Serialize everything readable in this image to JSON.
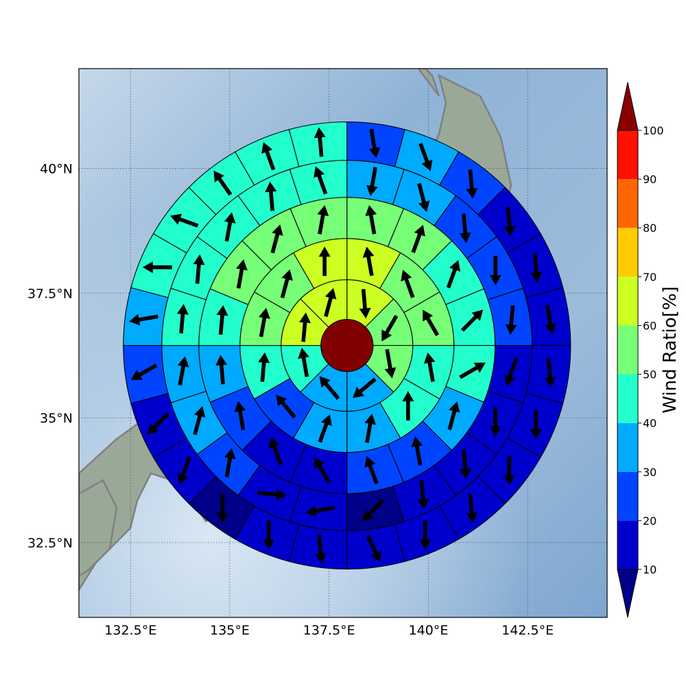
{
  "chart_data": {
    "type": "heatmap",
    "title": "",
    "map": {
      "lon_range": [
        131.2,
        144.5
      ],
      "lat_range": [
        31.0,
        42.0
      ],
      "x_ticks": [
        "132.5°E",
        "135°E",
        "137.5°E",
        "140°E",
        "142.5°E"
      ],
      "x_tick_values": [
        132.5,
        135,
        137.5,
        140,
        142.5
      ],
      "y_ticks": [
        "32.5°N",
        "35°N",
        "37.5°N",
        "40°N"
      ],
      "y_tick_values": [
        32.5,
        35,
        37.5,
        40
      ],
      "grid": true,
      "background": "shaded relief map with gray coastlines",
      "center_lon": 137.95,
      "center_lat": 36.45
    },
    "colorbar": {
      "label": "Wind Ratio[%]",
      "ticks": [
        "10",
        "20",
        "30",
        "40",
        "50",
        "60",
        "70",
        "80",
        "90",
        "100"
      ],
      "bounds": [
        10,
        20,
        30,
        40,
        50,
        60,
        70,
        80,
        90,
        100
      ],
      "colors": [
        "#0000cc",
        "#0044ff",
        "#00aaff",
        "#22ffcc",
        "#77ff77",
        "#ccff22",
        "#ffcc00",
        "#ff6600",
        "#ff1100"
      ],
      "under_color": "#000088",
      "over_color": "#880000",
      "extend": "both",
      "placement": "right"
    },
    "center_value_color": "#800000",
    "rings": [
      {
        "sectors": 8,
        "values": [
          65,
          55,
          55,
          35,
          35,
          45,
          65,
          65
        ]
      },
      {
        "sectors": 12,
        "values": [
          60,
          55,
          55,
          45,
          45,
          35,
          35,
          25,
          45,
          55,
          55,
          65
        ]
      },
      {
        "sectors": 16,
        "values": [
          55,
          55,
          45,
          45,
          45,
          35,
          25,
          25,
          15,
          15,
          25,
          35,
          45,
          55,
          55,
          55
        ]
      },
      {
        "sectors": 20,
        "values": [
          35,
          35,
          25,
          25,
          25,
          15,
          15,
          15,
          15,
          5,
          15,
          15,
          25,
          35,
          35,
          45,
          45,
          45,
          45,
          45
        ]
      },
      {
        "sectors": 24,
        "values": [
          25,
          35,
          25,
          15,
          15,
          15,
          15,
          15,
          15,
          15,
          15,
          15,
          15,
          15,
          5,
          15,
          15,
          25,
          35,
          45,
          45,
          45,
          45,
          45
        ]
      }
    ],
    "wind_directions": [
      [
        175,
        210,
        170,
        230,
        320,
        350,
        5,
        15
      ],
      [
        350,
        340,
        330,
        350,
        0,
        10,
        20,
        320,
        5,
        10,
        15,
        0
      ],
      [
        350,
        20,
        20,
        45,
        60,
        15,
        350,
        340,
        330,
        340,
        350,
        355,
        5,
        10,
        15,
        10
      ],
      [
        190,
        165,
        175,
        180,
        185,
        200,
        180,
        175,
        175,
        225,
        260,
        95,
        10,
        15,
        10,
        5,
        5,
        10,
        355,
        340
      ],
      [
        170,
        160,
        175,
        175,
        175,
        170,
        175,
        180,
        180,
        175,
        180,
        155,
        175,
        180,
        180,
        200,
        225,
        240,
        260,
        270,
        290,
        325,
        340,
        355
      ]
    ]
  }
}
